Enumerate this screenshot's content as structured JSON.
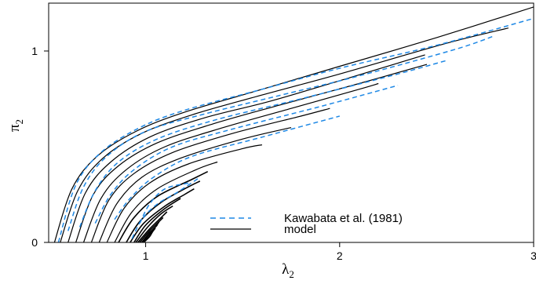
{
  "chart_data": {
    "type": "line",
    "title": "",
    "xlabel": {
      "symbol": "λ",
      "subscript": "2"
    },
    "ylabel": {
      "symbol": "π",
      "subscript": "2"
    },
    "xlim": [
      0.5,
      3
    ],
    "ylim": [
      0,
      1.25
    ],
    "xticks": [
      1,
      2,
      3
    ],
    "yticks": [
      0,
      1
    ],
    "grid": false,
    "legend": {
      "position": "bottom-right",
      "entries": [
        {
          "label": "Kawabata et al. (1981)",
          "color": "#1e88e5",
          "dash": "dashed"
        },
        {
          "label": "model",
          "color": "#000000",
          "dash": "solid"
        }
      ]
    },
    "series": [
      {
        "name": "model",
        "color": "#000000",
        "dash": "solid",
        "curves": [
          [
            [
              0.53,
              0
            ],
            [
              0.62,
              0.28
            ],
            [
              0.75,
              0.45
            ],
            [
              0.95,
              0.58
            ],
            [
              1.2,
              0.68
            ],
            [
              1.6,
              0.8
            ],
            [
              2.0,
              0.92
            ],
            [
              2.5,
              1.07
            ],
            [
              3.0,
              1.23
            ]
          ],
          [
            [
              0.56,
              0
            ],
            [
              0.65,
              0.27
            ],
            [
              0.78,
              0.44
            ],
            [
              0.98,
              0.57
            ],
            [
              1.25,
              0.67
            ],
            [
              1.6,
              0.77
            ],
            [
              2.0,
              0.88
            ],
            [
              2.55,
              1.04
            ],
            [
              2.87,
              1.12
            ]
          ],
          [
            [
              0.6,
              0
            ],
            [
              0.69,
              0.26
            ],
            [
              0.82,
              0.42
            ],
            [
              1.02,
              0.55
            ],
            [
              1.3,
              0.65
            ],
            [
              1.65,
              0.74
            ],
            [
              2.05,
              0.86
            ],
            [
              2.44,
              0.98
            ]
          ],
          [
            [
              0.64,
              0
            ],
            [
              0.73,
              0.25
            ],
            [
              0.86,
              0.4
            ],
            [
              1.06,
              0.52
            ],
            [
              1.35,
              0.62
            ],
            [
              1.7,
              0.72
            ],
            [
              2.1,
              0.83
            ],
            [
              2.45,
              0.93
            ]
          ],
          [
            [
              0.68,
              0
            ],
            [
              0.77,
              0.23
            ],
            [
              0.9,
              0.38
            ],
            [
              1.1,
              0.5
            ],
            [
              1.4,
              0.6
            ],
            [
              1.75,
              0.7
            ],
            [
              2.1,
              0.8
            ],
            [
              2.2,
              0.83
            ]
          ],
          [
            [
              0.72,
              0
            ],
            [
              0.81,
              0.22
            ],
            [
              0.94,
              0.36
            ],
            [
              1.14,
              0.47
            ],
            [
              1.45,
              0.57
            ],
            [
              1.8,
              0.66
            ],
            [
              1.95,
              0.7
            ]
          ],
          [
            [
              0.76,
              0
            ],
            [
              0.85,
              0.2
            ],
            [
              0.98,
              0.34
            ],
            [
              1.18,
              0.44
            ],
            [
              1.5,
              0.54
            ],
            [
              1.75,
              0.6
            ]
          ],
          [
            [
              0.8,
              0
            ],
            [
              0.89,
              0.18
            ],
            [
              1.02,
              0.31
            ],
            [
              1.22,
              0.41
            ],
            [
              1.5,
              0.49
            ],
            [
              1.6,
              0.51
            ]
          ],
          [
            [
              0.84,
              0
            ],
            [
              0.93,
              0.16
            ],
            [
              1.06,
              0.28
            ],
            [
              1.26,
              0.38
            ],
            [
              1.37,
              0.42
            ]
          ]
        ]
      },
      {
        "name": "Kawabata et al. (1981)",
        "color": "#1e88e5",
        "dash": "dashed",
        "curves": [
          [
            [
              0.55,
              0
            ],
            [
              0.64,
              0.3
            ],
            [
              0.77,
              0.47
            ],
            [
              0.97,
              0.6
            ],
            [
              1.2,
              0.69
            ],
            [
              1.6,
              0.8
            ],
            [
              2.0,
              0.91
            ],
            [
              2.5,
              1.03
            ],
            [
              3.0,
              1.17
            ]
          ],
          [
            [
              0.6,
              0.06
            ],
            [
              0.68,
              0.29
            ],
            [
              0.8,
              0.45
            ],
            [
              1.0,
              0.58
            ],
            [
              1.3,
              0.67
            ],
            [
              1.7,
              0.77
            ],
            [
              2.1,
              0.87
            ],
            [
              2.6,
              1.01
            ],
            [
              2.8,
              1.08
            ]
          ],
          [
            [
              0.66,
              0.08
            ],
            [
              0.74,
              0.27
            ],
            [
              0.86,
              0.42
            ],
            [
              1.06,
              0.54
            ],
            [
              1.36,
              0.64
            ],
            [
              1.8,
              0.75
            ],
            [
              2.3,
              0.88
            ],
            [
              2.55,
              0.95
            ]
          ],
          [
            [
              0.74,
              0.1
            ],
            [
              0.82,
              0.25
            ],
            [
              0.94,
              0.38
            ],
            [
              1.14,
              0.5
            ],
            [
              1.44,
              0.59
            ],
            [
              1.9,
              0.71
            ],
            [
              2.3,
              0.82
            ]
          ],
          [
            [
              0.84,
              0.12
            ],
            [
              0.92,
              0.23
            ],
            [
              1.04,
              0.34
            ],
            [
              1.24,
              0.45
            ],
            [
              1.6,
              0.55
            ],
            [
              2.0,
              0.66
            ]
          ],
          [
            [
              0.97,
              0.1
            ],
            [
              1.02,
              0.2
            ],
            [
              1.1,
              0.28
            ],
            [
              1.22,
              0.31
            ]
          ],
          [
            [
              0.93,
              0.02
            ],
            [
              0.98,
              0.12
            ],
            [
              1.06,
              0.2
            ],
            [
              1.16,
              0.26
            ],
            [
              1.28,
              0.34
            ]
          ]
        ]
      }
    ],
    "cluster": {
      "color": "#000000",
      "curves": [
        [
          [
            0.86,
            0
          ],
          [
            0.94,
            0.13
          ],
          [
            1.06,
            0.24
          ],
          [
            1.24,
            0.33
          ],
          [
            1.32,
            0.37
          ]
        ],
        [
          [
            0.9,
            0
          ],
          [
            0.97,
            0.11
          ],
          [
            1.08,
            0.21
          ],
          [
            1.22,
            0.29
          ],
          [
            1.28,
            0.32
          ]
        ],
        [
          [
            0.92,
            0
          ],
          [
            0.99,
            0.1
          ],
          [
            1.1,
            0.19
          ],
          [
            1.2,
            0.25
          ],
          [
            1.25,
            0.28
          ]
        ],
        [
          [
            0.94,
            0
          ],
          [
            1.0,
            0.09
          ],
          [
            1.09,
            0.17
          ],
          [
            1.18,
            0.23
          ]
        ],
        [
          [
            0.95,
            0
          ],
          [
            1.01,
            0.08
          ],
          [
            1.08,
            0.15
          ],
          [
            1.14,
            0.19
          ]
        ],
        [
          [
            0.96,
            0
          ],
          [
            1.02,
            0.07
          ],
          [
            1.07,
            0.12
          ],
          [
            1.11,
            0.16
          ]
        ],
        [
          [
            0.97,
            0
          ],
          [
            1.02,
            0.06
          ],
          [
            1.06,
            0.1
          ],
          [
            1.09,
            0.13
          ]
        ],
        [
          [
            0.98,
            0
          ],
          [
            1.02,
            0.05
          ],
          [
            1.05,
            0.08
          ],
          [
            1.07,
            0.11
          ]
        ],
        [
          [
            0.985,
            0
          ],
          [
            1.02,
            0.04
          ],
          [
            1.04,
            0.07
          ],
          [
            1.06,
            0.09
          ]
        ],
        [
          [
            0.99,
            0
          ],
          [
            1.02,
            0.03
          ],
          [
            1.035,
            0.055
          ],
          [
            1.05,
            0.075
          ]
        ]
      ]
    }
  }
}
